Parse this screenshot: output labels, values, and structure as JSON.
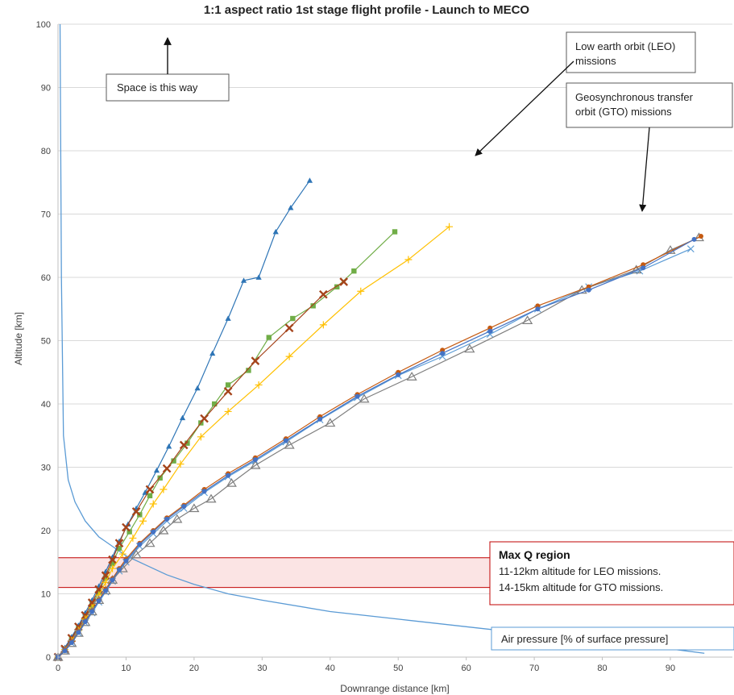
{
  "chart_data": {
    "type": "line",
    "title": "1:1 aspect ratio 1st stage flight profile - Launch to MECO",
    "xlabel": "Downrange distance [km]",
    "ylabel": "Altitude [km]",
    "xlim": [
      0,
      95
    ],
    "ylim": [
      0,
      100
    ],
    "xticks": [
      "0",
      "10",
      "20",
      "30",
      "40",
      "50",
      "60",
      "70",
      "80",
      "90"
    ],
    "yticks": [
      "0",
      "10",
      "20",
      "30",
      "40",
      "50",
      "60",
      "70",
      "80",
      "90",
      "100"
    ],
    "grid": "horizontal",
    "series": [
      {
        "marker": "triangle-filled",
        "color": "#2e75b6",
        "x": [
          0,
          1,
          2,
          3,
          4,
          5,
          6,
          7,
          8,
          9,
          10.3,
          11.5,
          12.8,
          14.5,
          16.3,
          18.3,
          20.5,
          22.7,
          25,
          27.3,
          29.5,
          32,
          34.2,
          37
        ],
        "y": [
          0,
          1.5,
          3.2,
          5,
          7,
          9,
          11.2,
          13.5,
          15.8,
          18.3,
          21,
          23.5,
          26,
          29.5,
          33.3,
          37.8,
          42.5,
          48,
          53.5,
          59.5,
          60,
          67.2,
          71,
          75.3
        ]
      },
      {
        "marker": "square",
        "color": "#70ad47",
        "x": [
          0,
          1,
          2,
          3,
          4,
          5,
          6,
          7,
          8,
          9,
          10.5,
          12,
          13.5,
          15,
          17,
          19,
          21,
          23,
          25,
          28,
          31,
          34.5,
          37.5,
          41,
          43.5,
          49.5
        ],
        "y": [
          0,
          1.2,
          2.8,
          4.5,
          6.2,
          8.2,
          10.3,
          12.5,
          14.8,
          17.2,
          19.8,
          22.5,
          25.5,
          28.3,
          31,
          33.8,
          37,
          40,
          43,
          45.3,
          50.5,
          53.5,
          55.5,
          58.5,
          61,
          67.2
        ]
      },
      {
        "marker": "x-thick",
        "color": "#a5441b",
        "x": [
          0,
          1,
          2,
          3,
          4,
          5,
          6,
          7,
          8,
          9,
          10,
          11.5,
          13.5,
          16,
          18.5,
          21.5,
          25,
          29,
          34,
          39,
          42
        ],
        "y": [
          0,
          1.3,
          3,
          4.8,
          6.6,
          8.6,
          10.7,
          12.9,
          15.4,
          18,
          20.5,
          23,
          26.5,
          29.8,
          33.5,
          37.7,
          42,
          46.8,
          52,
          57.3,
          59.3
        ]
      },
      {
        "marker": "plus",
        "color": "#ffc000",
        "x": [
          0,
          1,
          2,
          3,
          4,
          5,
          6,
          7,
          8,
          9.5,
          11,
          12.5,
          14,
          15.5,
          18,
          21,
          25,
          29.5,
          34,
          39,
          44.5,
          51.5,
          57.5
        ],
        "y": [
          0,
          1.2,
          2.6,
          4.2,
          6,
          7.8,
          9.8,
          11.8,
          14,
          16.3,
          18.8,
          21.5,
          24.2,
          26.5,
          30.5,
          34.8,
          38.8,
          43,
          47.5,
          52.5,
          57.8,
          62.8,
          68
        ]
      },
      {
        "marker": "x-thin",
        "color": "#5b9bd5",
        "x": [
          0,
          1,
          2,
          3,
          4,
          5,
          6,
          7,
          8,
          9,
          10,
          12,
          14,
          16,
          18.5,
          21.5,
          25,
          29,
          33.5,
          38.5,
          44,
          50,
          56.5,
          63.5,
          70.5,
          78,
          85.5,
          93
        ],
        "y": [
          0,
          1,
          2.2,
          3.8,
          5.4,
          7,
          8.7,
          10.3,
          12,
          13.6,
          15,
          17.5,
          19.5,
          21.5,
          23.5,
          26,
          28.5,
          31,
          34,
          37.5,
          41,
          44.5,
          47.5,
          51,
          55,
          58.5,
          61,
          64.5
        ]
      },
      {
        "marker": "triangle-open",
        "color": "#7f7f7f",
        "x": [
          0,
          1,
          2,
          3,
          4,
          5,
          6,
          7,
          8,
          9.5,
          11.5,
          13.5,
          15.5,
          17.5,
          20,
          22.5,
          25.5,
          29,
          34,
          40,
          45,
          52,
          60.5,
          69,
          77,
          85,
          90,
          94.2
        ],
        "y": [
          0,
          1,
          2.2,
          3.8,
          5.5,
          7.2,
          9,
          10.5,
          12.2,
          14,
          16.2,
          18,
          20,
          21.8,
          23.5,
          25,
          27.5,
          30.3,
          33.5,
          37,
          40.8,
          44.3,
          48.7,
          53.2,
          58,
          61.2,
          64.3,
          66.3
        ]
      },
      {
        "marker": "circle",
        "color": "#c55a11",
        "x": [
          0,
          1,
          2,
          3,
          4,
          5,
          6,
          7,
          8,
          9,
          10,
          12,
          14,
          16,
          18.5,
          21.5,
          25,
          29,
          33.5,
          38.5,
          44,
          50,
          56.5,
          63.5,
          70.5,
          78,
          86,
          94.5
        ],
        "y": [
          0,
          1.1,
          2.4,
          4,
          5.7,
          7.3,
          9,
          10.7,
          12.4,
          14,
          15.5,
          18,
          20,
          22,
          24,
          26.5,
          29,
          31.5,
          34.5,
          38,
          41.5,
          45,
          48.5,
          52,
          55.5,
          58.5,
          62,
          66.5
        ]
      },
      {
        "marker": "circle",
        "color": "#4472c4",
        "x": [
          0,
          1,
          2,
          3,
          4,
          5,
          6,
          7,
          8,
          9,
          10,
          12,
          14,
          16,
          18.5,
          21.5,
          25,
          29,
          33.5,
          38.5,
          44,
          50,
          56.5,
          63.5,
          70.5,
          78,
          86,
          93.5
        ],
        "y": [
          0,
          1,
          2.3,
          3.9,
          5.6,
          7.2,
          8.9,
          10.5,
          12.2,
          13.8,
          15.2,
          17.8,
          19.8,
          21.8,
          23.8,
          26.2,
          28.7,
          31.2,
          34.2,
          37.6,
          41.2,
          44.6,
          48,
          51.5,
          55,
          58,
          61.5,
          66
        ]
      }
    ],
    "air_pressure_curve": {
      "color": "#5b9bd5",
      "x": [
        0.3,
        0.5,
        0.8,
        1.5,
        2.5,
        4,
        6,
        8,
        10,
        13,
        16,
        20,
        25,
        30,
        40,
        50,
        60,
        70,
        80,
        90,
        95
      ],
      "y": [
        100,
        60,
        35,
        28,
        24.5,
        21.5,
        19,
        17.5,
        16,
        14.5,
        13,
        11.5,
        10,
        9,
        7.2,
        6,
        4.8,
        3.6,
        2.4,
        1.3,
        0.6
      ]
    },
    "max_q_band": {
      "y": [
        11,
        15.7
      ],
      "x": [
        0,
        95
      ]
    },
    "annotations": {
      "space_label": "Space is this way",
      "leo_label_line1": "Low earth orbit (LEO)",
      "leo_label_line2": "missions",
      "gto_label_line1": "Geosynchronous transfer",
      "gto_label_line2": "orbit (GTO) missions",
      "maxq_title": "Max Q region",
      "maxq_line1": "11-12km altitude for LEO missions.",
      "maxq_line2": "14-15km altitude for GTO missions.",
      "pressure_label": "Air pressure [% of surface pressure]"
    }
  }
}
